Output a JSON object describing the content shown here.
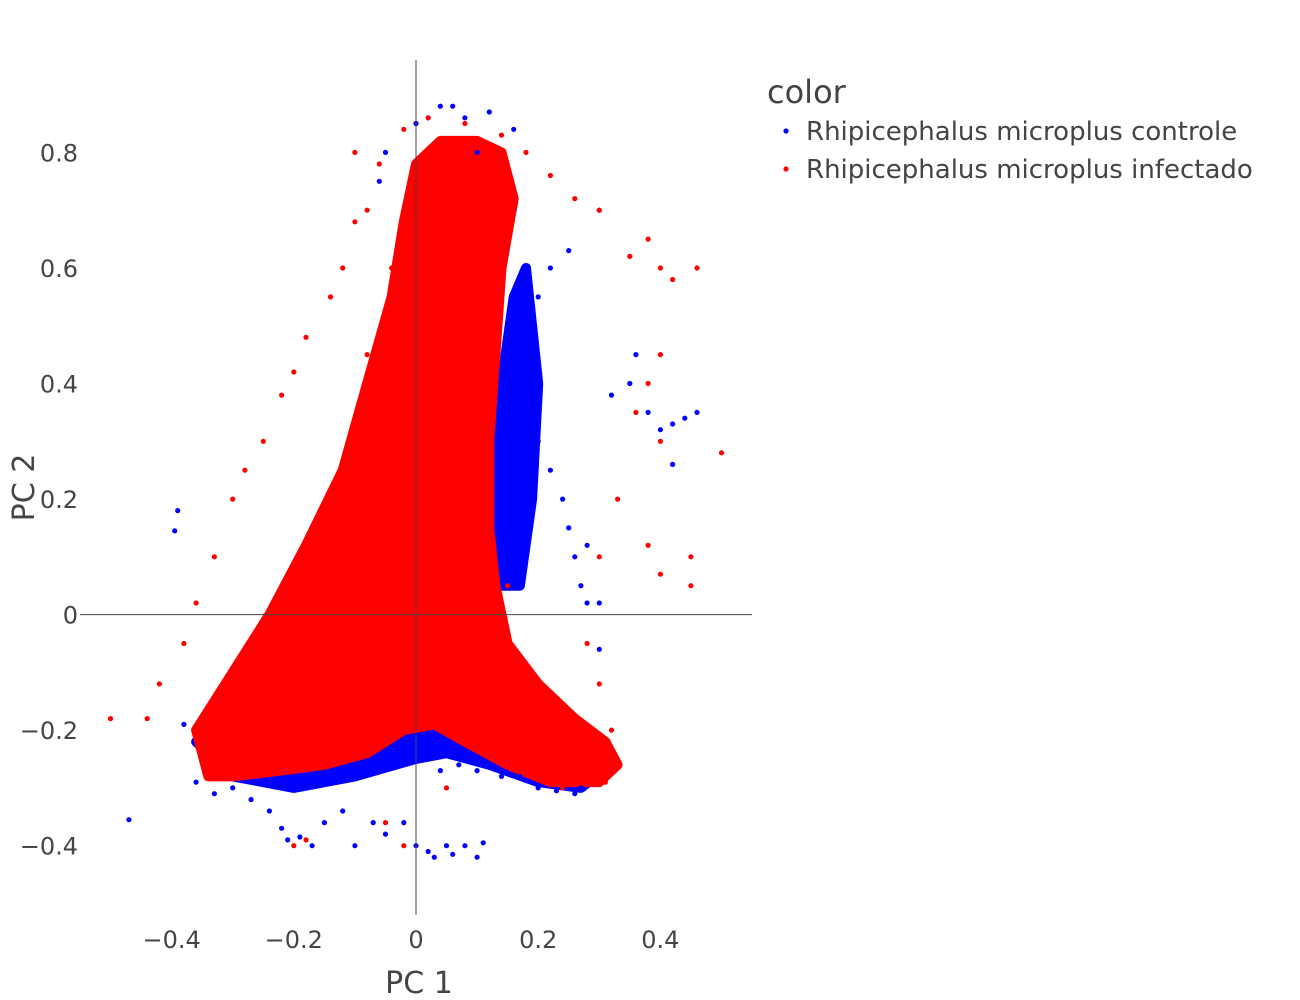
{
  "chart_data": {
    "type": "scatter",
    "title": "",
    "xlabel": "PC 1",
    "ylabel": "PC 2",
    "xlim": [
      -0.55,
      0.55
    ],
    "ylim": [
      -0.52,
      0.96
    ],
    "xticks": [
      -0.4,
      -0.2,
      0,
      0.2,
      0.4
    ],
    "yticks": [
      -0.4,
      -0.2,
      0,
      0.2,
      0.4,
      0.6,
      0.8
    ],
    "xtick_labels": [
      "−0.4",
      "−0.2",
      "0",
      "0.2",
      "0.4"
    ],
    "ytick_labels": [
      "−0.4",
      "−0.2",
      "0",
      "0.2",
      "0.4",
      "0.6",
      "0.8"
    ],
    "grid": false,
    "zeroline": true,
    "legend": {
      "title": "color",
      "placement": "top-right outside plot"
    },
    "series": [
      {
        "name": "Rhipicephalus microplus controle",
        "color": "#0000ff",
        "points": [
          [
            -0.47,
            -0.355
          ],
          [
            -0.39,
            0.18
          ],
          [
            -0.395,
            0.145
          ],
          [
            -0.38,
            -0.19
          ],
          [
            -0.36,
            -0.29
          ],
          [
            -0.33,
            -0.31
          ],
          [
            -0.3,
            -0.3
          ],
          [
            -0.27,
            -0.32
          ],
          [
            -0.24,
            -0.34
          ],
          [
            -0.22,
            -0.37
          ],
          [
            -0.21,
            -0.39
          ],
          [
            -0.19,
            -0.385
          ],
          [
            -0.17,
            -0.4
          ],
          [
            -0.15,
            -0.36
          ],
          [
            -0.12,
            -0.34
          ],
          [
            -0.1,
            -0.4
          ],
          [
            -0.07,
            -0.36
          ],
          [
            -0.05,
            -0.38
          ],
          [
            -0.02,
            -0.36
          ],
          [
            0.0,
            -0.4
          ],
          [
            0.02,
            -0.41
          ],
          [
            0.03,
            -0.42
          ],
          [
            0.05,
            -0.4
          ],
          [
            0.06,
            -0.415
          ],
          [
            0.08,
            -0.4
          ],
          [
            0.1,
            -0.42
          ],
          [
            0.11,
            -0.395
          ],
          [
            0.04,
            -0.27
          ],
          [
            0.07,
            -0.26
          ],
          [
            0.1,
            -0.27
          ],
          [
            0.14,
            -0.28
          ],
          [
            0.17,
            -0.28
          ],
          [
            0.2,
            -0.3
          ],
          [
            0.23,
            -0.305
          ],
          [
            0.26,
            -0.31
          ],
          [
            0.27,
            -0.3
          ],
          [
            0.15,
            0.4
          ],
          [
            0.18,
            0.36
          ],
          [
            0.2,
            0.3
          ],
          [
            0.22,
            0.25
          ],
          [
            0.24,
            0.2
          ],
          [
            0.25,
            0.15
          ],
          [
            0.26,
            0.1
          ],
          [
            0.27,
            0.05
          ],
          [
            0.28,
            0.02
          ],
          [
            0.3,
            0.02
          ],
          [
            0.18,
            0.5
          ],
          [
            0.2,
            0.55
          ],
          [
            0.22,
            0.6
          ],
          [
            0.25,
            0.63
          ],
          [
            0.3,
            0.7
          ],
          [
            0.35,
            0.4
          ],
          [
            0.38,
            0.35
          ],
          [
            0.42,
            0.33
          ],
          [
            0.44,
            0.34
          ],
          [
            0.46,
            0.35
          ],
          [
            0.42,
            0.26
          ],
          [
            0.4,
            0.32
          ],
          [
            0.36,
            0.45
          ],
          [
            0.32,
            0.38
          ],
          [
            0.0,
            0.85
          ],
          [
            0.04,
            0.88
          ],
          [
            0.06,
            0.88
          ],
          [
            0.08,
            0.86
          ],
          [
            0.12,
            0.87
          ],
          [
            0.16,
            0.84
          ],
          [
            0.02,
            0.86
          ],
          [
            -0.05,
            0.8
          ],
          [
            -0.06,
            0.75
          ],
          [
            0.1,
            0.8
          ],
          [
            0.28,
            0.12
          ],
          [
            0.3,
            -0.06
          ]
        ]
      },
      {
        "name": "Rhipicephalus microplus infectado",
        "color": "#ff0000",
        "points": [
          [
            -0.5,
            -0.18
          ],
          [
            -0.44,
            -0.18
          ],
          [
            -0.42,
            -0.12
          ],
          [
            -0.38,
            -0.05
          ],
          [
            -0.36,
            0.02
          ],
          [
            -0.33,
            0.1
          ],
          [
            -0.3,
            0.2
          ],
          [
            -0.28,
            0.25
          ],
          [
            -0.25,
            0.3
          ],
          [
            -0.22,
            0.38
          ],
          [
            -0.2,
            0.42
          ],
          [
            -0.18,
            0.48
          ],
          [
            -0.14,
            0.55
          ],
          [
            -0.12,
            0.6
          ],
          [
            -0.1,
            0.68
          ],
          [
            -0.08,
            0.7
          ],
          [
            -0.06,
            0.78
          ],
          [
            -0.1,
            0.8
          ],
          [
            -0.02,
            0.84
          ],
          [
            0.02,
            0.86
          ],
          [
            0.08,
            0.85
          ],
          [
            0.14,
            0.83
          ],
          [
            0.18,
            0.8
          ],
          [
            0.22,
            0.76
          ],
          [
            0.26,
            0.72
          ],
          [
            0.3,
            0.7
          ],
          [
            0.35,
            0.62
          ],
          [
            0.38,
            0.65
          ],
          [
            0.4,
            0.6
          ],
          [
            0.42,
            0.58
          ],
          [
            0.46,
            0.6
          ],
          [
            0.4,
            0.45
          ],
          [
            0.38,
            0.4
          ],
          [
            0.36,
            0.35
          ],
          [
            0.4,
            0.3
          ],
          [
            0.5,
            0.28
          ],
          [
            0.38,
            0.12
          ],
          [
            0.4,
            0.07
          ],
          [
            0.45,
            0.05
          ],
          [
            0.45,
            0.1
          ],
          [
            0.33,
            0.2
          ],
          [
            0.3,
            0.1
          ],
          [
            0.28,
            -0.05
          ],
          [
            0.3,
            -0.12
          ],
          [
            0.32,
            -0.2
          ],
          [
            0.33,
            -0.26
          ],
          [
            0.31,
            -0.29
          ],
          [
            0.28,
            -0.29
          ],
          [
            0.24,
            -0.3
          ],
          [
            0.2,
            -0.28
          ],
          [
            0.15,
            -0.22
          ],
          [
            0.1,
            -0.18
          ],
          [
            0.05,
            -0.12
          ],
          [
            0.0,
            -0.05
          ],
          [
            -0.05,
            -0.16
          ],
          [
            -0.1,
            -0.2
          ],
          [
            -0.15,
            -0.22
          ],
          [
            -0.2,
            -0.26
          ],
          [
            -0.25,
            -0.25
          ],
          [
            -0.3,
            -0.27
          ],
          [
            -0.34,
            -0.25
          ],
          [
            -0.36,
            -0.2
          ],
          [
            -0.2,
            -0.4
          ],
          [
            -0.18,
            -0.39
          ],
          [
            -0.05,
            -0.36
          ],
          [
            -0.02,
            -0.4
          ],
          [
            0.05,
            -0.3
          ],
          [
            -0.1,
            -0.1
          ],
          [
            -0.05,
            0.1
          ],
          [
            0.0,
            0.2
          ],
          [
            0.02,
            0.35
          ],
          [
            0.05,
            0.5
          ],
          [
            -0.02,
            0.3
          ],
          [
            -0.1,
            0.25
          ],
          [
            -0.15,
            0.1
          ],
          [
            -0.2,
            0.0
          ],
          [
            0.1,
            0.0
          ],
          [
            0.15,
            0.05
          ],
          [
            0.08,
            0.3
          ],
          [
            0.1,
            0.6
          ],
          [
            0.0,
            0.7
          ],
          [
            0.05,
            0.75
          ],
          [
            0.12,
            0.7
          ],
          [
            -0.04,
            0.6
          ],
          [
            -0.08,
            0.45
          ],
          [
            0.1,
            -0.1
          ],
          [
            0.2,
            -0.2
          ],
          [
            -0.25,
            -0.15
          ]
        ]
      }
    ],
    "fill_regions": [
      {
        "series": "Rhipicephalus microplus controle",
        "polygon": [
          [
            -0.36,
            -0.22
          ],
          [
            -0.3,
            -0.28
          ],
          [
            -0.2,
            -0.3
          ],
          [
            -0.1,
            -0.28
          ],
          [
            0.0,
            -0.25
          ],
          [
            0.05,
            -0.24
          ],
          [
            0.12,
            -0.26
          ],
          [
            0.2,
            -0.29
          ],
          [
            0.27,
            -0.3
          ],
          [
            0.32,
            -0.26
          ],
          [
            0.26,
            -0.18
          ],
          [
            0.1,
            -0.14
          ],
          [
            0.0,
            -0.16
          ],
          [
            -0.1,
            -0.18
          ],
          [
            -0.25,
            -0.2
          ]
        ]
      },
      {
        "series": "Rhipicephalus microplus controle",
        "polygon": [
          [
            0.1,
            0.2
          ],
          [
            0.14,
            0.4
          ],
          [
            0.16,
            0.55
          ],
          [
            0.18,
            0.6
          ],
          [
            0.2,
            0.4
          ],
          [
            0.19,
            0.2
          ],
          [
            0.17,
            0.05
          ],
          [
            0.13,
            0.05
          ]
        ]
      },
      {
        "series": "Rhipicephalus microplus infectado",
        "polygon": [
          [
            -0.34,
            -0.28
          ],
          [
            -0.36,
            -0.2
          ],
          [
            -0.3,
            -0.1
          ],
          [
            -0.24,
            0.0
          ],
          [
            -0.18,
            0.12
          ],
          [
            -0.12,
            0.25
          ],
          [
            -0.08,
            0.4
          ],
          [
            -0.04,
            0.55
          ],
          [
            -0.02,
            0.68
          ],
          [
            0.0,
            0.78
          ],
          [
            0.04,
            0.82
          ],
          [
            0.1,
            0.82
          ],
          [
            0.14,
            0.8
          ],
          [
            0.16,
            0.72
          ],
          [
            0.14,
            0.6
          ],
          [
            0.13,
            0.45
          ],
          [
            0.12,
            0.3
          ],
          [
            0.12,
            0.15
          ],
          [
            0.13,
            0.05
          ],
          [
            0.15,
            -0.05
          ],
          [
            0.2,
            -0.12
          ],
          [
            0.26,
            -0.18
          ],
          [
            0.31,
            -0.22
          ],
          [
            0.33,
            -0.26
          ],
          [
            0.3,
            -0.29
          ],
          [
            0.22,
            -0.29
          ],
          [
            0.15,
            -0.26
          ],
          [
            0.08,
            -0.22
          ],
          [
            0.03,
            -0.19
          ],
          [
            -0.02,
            -0.2
          ],
          [
            -0.08,
            -0.24
          ],
          [
            -0.15,
            -0.26
          ],
          [
            -0.22,
            -0.27
          ],
          [
            -0.3,
            -0.28
          ]
        ]
      }
    ]
  }
}
